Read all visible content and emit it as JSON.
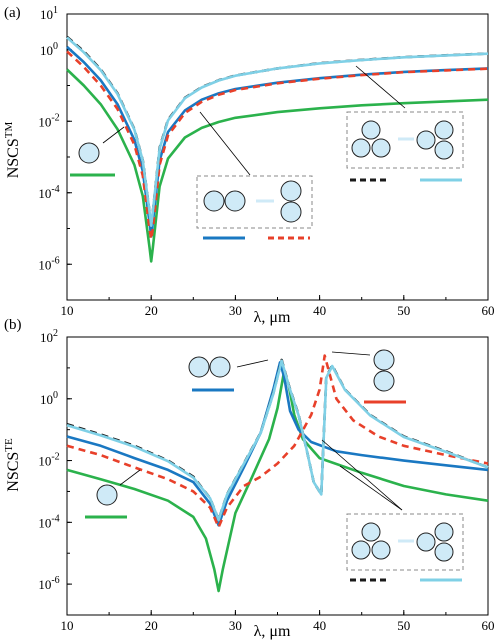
{
  "colors": {
    "single": "#2bb24c",
    "pair_horizontal": "#1a78c2",
    "pair_vertical": "#e8402a",
    "quad_a": "#1a1a1a",
    "quad_b": "#7fd0e6",
    "particle_fill": "#cfeaf7"
  },
  "chart_data": [
    {
      "panel": "(a)",
      "type": "line",
      "xlabel": "λ, μm",
      "ylabel_main": "NSCS",
      "ylabel_sup": "TM",
      "xlim": [
        10,
        60
      ],
      "ylim": [
        1e-07,
        10
      ],
      "yscale": "log",
      "x_ticks": [
        "10",
        "20",
        "30",
        "40",
        "50",
        "60"
      ],
      "y_ticks": [
        {
          "base": "10",
          "exp": "1"
        },
        {
          "base": "10",
          "exp": "0"
        },
        {
          "base": "10",
          "exp": "-2"
        },
        {
          "base": "10",
          "exp": "-4"
        },
        {
          "base": "10",
          "exp": "-6"
        }
      ],
      "series": [
        {
          "key": "single",
          "x": [
            10,
            12,
            14,
            16,
            18,
            19,
            19.8,
            20,
            20.2,
            21,
            22,
            24,
            26,
            28,
            30,
            35,
            40,
            45,
            50,
            55,
            60
          ],
          "y": [
            0.28,
            0.1,
            0.03,
            0.006,
            0.0006,
            8e-05,
            3e-06,
            1.2e-06,
            3e-06,
            0.00015,
            0.0009,
            0.0035,
            0.0065,
            0.0095,
            0.0125,
            0.018,
            0.023,
            0.028,
            0.032,
            0.036,
            0.04
          ]
        },
        {
          "key": "pair_horizontal",
          "x": [
            10,
            12,
            14,
            16,
            18,
            19,
            19.8,
            20,
            20.2,
            21,
            22,
            24,
            26,
            28,
            30,
            35,
            40,
            45,
            50,
            55,
            60
          ],
          "y": [
            1.2,
            0.45,
            0.14,
            0.03,
            0.003,
            0.0004,
            1.5e-05,
            6e-06,
            1.5e-05,
            0.0008,
            0.005,
            0.02,
            0.04,
            0.06,
            0.08,
            0.12,
            0.16,
            0.2,
            0.24,
            0.27,
            0.3
          ]
        },
        {
          "key": "pair_vertical",
          "x": [
            10,
            12,
            14,
            16,
            18,
            19,
            19.8,
            20,
            20.2,
            21,
            22,
            24,
            26,
            28,
            30,
            35,
            40,
            45,
            50,
            55,
            60
          ],
          "y": [
            0.9,
            0.33,
            0.1,
            0.022,
            0.0022,
            0.0003,
            1e-05,
            5e-06,
            1e-05,
            0.0006,
            0.004,
            0.017,
            0.035,
            0.055,
            0.075,
            0.115,
            0.155,
            0.195,
            0.235,
            0.265,
            0.295
          ]
        },
        {
          "key": "quad_a",
          "x": [
            10,
            12,
            14,
            16,
            18,
            19,
            19.8,
            20,
            20.2,
            21,
            22,
            24,
            26,
            28,
            30,
            35,
            40,
            45,
            50,
            55,
            60
          ],
          "y": [
            2.3,
            0.9,
            0.28,
            0.06,
            0.006,
            0.0008,
            3e-05,
            1.2e-05,
            3e-05,
            0.0018,
            0.011,
            0.045,
            0.09,
            0.14,
            0.19,
            0.3,
            0.42,
            0.52,
            0.62,
            0.7,
            0.78
          ]
        },
        {
          "key": "quad_b",
          "x": [
            10,
            12,
            14,
            16,
            18,
            19,
            19.8,
            20,
            20.2,
            21,
            22,
            24,
            26,
            28,
            30,
            35,
            40,
            45,
            50,
            55,
            60
          ],
          "y": [
            2.2,
            0.85,
            0.27,
            0.058,
            0.0058,
            0.00078,
            3e-05,
            1.2e-05,
            3e-05,
            0.0017,
            0.0105,
            0.044,
            0.088,
            0.138,
            0.188,
            0.3,
            0.415,
            0.515,
            0.615,
            0.695,
            0.775
          ]
        }
      ]
    },
    {
      "panel": "(b)",
      "type": "line",
      "xlabel": "λ, μm",
      "ylabel_main": "NSCS",
      "ylabel_sup": "TE",
      "xlim": [
        10,
        60
      ],
      "ylim": [
        1e-07,
        100
      ],
      "yscale": "log",
      "x_ticks": [
        "10",
        "20",
        "30",
        "40",
        "50",
        "60"
      ],
      "y_ticks": [
        {
          "base": "10",
          "exp": "2"
        },
        {
          "base": "10",
          "exp": "0"
        },
        {
          "base": "10",
          "exp": "-2"
        },
        {
          "base": "10",
          "exp": "-4"
        },
        {
          "base": "10",
          "exp": "-6"
        }
      ],
      "series": [
        {
          "key": "single",
          "x": [
            10,
            14,
            18,
            22,
            25,
            26.5,
            27.5,
            28,
            28.5,
            30,
            32,
            34,
            35,
            35.8,
            36.3,
            37,
            38,
            40,
            45,
            50,
            55,
            60
          ],
          "y": [
            0.005,
            0.0025,
            0.0012,
            0.0005,
            0.00015,
            3e-05,
            3e-06,
            6e-07,
            3e-06,
            0.0002,
            0.003,
            0.05,
            0.5,
            8,
            3,
            0.3,
            0.05,
            0.012,
            0.004,
            0.0015,
            0.0008,
            0.0005
          ]
        },
        {
          "key": "pair_horizontal",
          "x": [
            10,
            14,
            18,
            22,
            25,
            27,
            28,
            29,
            31,
            33,
            34.5,
            35.3,
            35.8,
            36.5,
            37.5,
            39,
            42,
            45,
            50,
            55,
            60
          ],
          "y": [
            0.06,
            0.03,
            0.012,
            0.005,
            0.002,
            0.0004,
            8e-05,
            0.0005,
            0.006,
            0.08,
            2,
            15,
            5,
            0.4,
            0.1,
            0.04,
            0.02,
            0.015,
            0.01,
            0.007,
            0.005
          ]
        },
        {
          "key": "pair_vertical",
          "x": [
            10,
            14,
            18,
            22,
            25,
            27,
            28,
            29,
            31,
            33,
            35,
            37,
            39,
            40,
            40.6,
            41.3,
            42,
            44,
            47,
            50,
            55,
            60
          ],
          "y": [
            0.03,
            0.015,
            0.006,
            0.0025,
            0.001,
            0.0003,
            7e-05,
            0.0003,
            0.0015,
            0.003,
            0.008,
            0.03,
            0.3,
            2,
            25,
            5,
            1,
            0.2,
            0.06,
            0.03,
            0.015,
            0.008
          ]
        },
        {
          "key": "quad_a",
          "x": [
            10,
            14,
            18,
            22,
            25,
            27,
            28,
            29,
            31,
            33,
            34.5,
            35.5,
            36.3,
            37.5,
            38.5,
            39.3,
            40.2,
            40.8,
            41.5,
            43,
            46,
            50,
            55,
            60
          ],
          "y": [
            0.15,
            0.07,
            0.03,
            0.01,
            0.003,
            0.0006,
            0.00012,
            0.0008,
            0.008,
            0.08,
            1.5,
            18,
            3,
            0.3,
            0.02,
            0.002,
            0.0008,
            5,
            12,
            2,
            0.3,
            0.06,
            0.02,
            0.006
          ]
        },
        {
          "key": "quad_b",
          "x": [
            10,
            14,
            18,
            22,
            25,
            27,
            28,
            29,
            31,
            33,
            34.5,
            35.5,
            36.3,
            37.5,
            38.5,
            39.3,
            40.2,
            40.8,
            41.5,
            43,
            46,
            50,
            55,
            60
          ],
          "y": [
            0.14,
            0.065,
            0.028,
            0.0095,
            0.0028,
            0.0006,
            0.00012,
            0.00078,
            0.0078,
            0.078,
            1.45,
            17,
            2.9,
            0.29,
            0.02,
            0.002,
            0.0008,
            4.8,
            11.5,
            1.95,
            0.29,
            0.058,
            0.019,
            0.006
          ]
        }
      ]
    }
  ]
}
